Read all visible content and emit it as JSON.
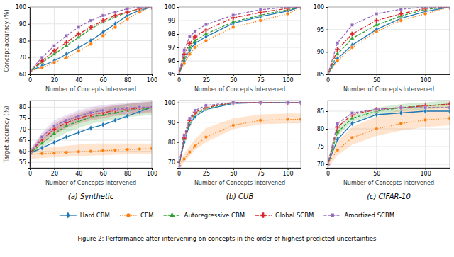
{
  "caption": "Figure 2: Performance after intervening on concepts in the order of highest predicted uncertainties",
  "chart_data": [
    {
      "type": "line",
      "ylabel": "Concept accuracy (%)",
      "xlabel": "Number of Concepts Intervened",
      "x": [
        0,
        10,
        20,
        30,
        40,
        50,
        60,
        70,
        80,
        90,
        100
      ],
      "series": [
        {
          "name": "Hard CBM",
          "marker": "diamond",
          "line_style": "solid",
          "values": [
            62,
            65,
            68,
            72,
            76,
            80,
            85,
            90,
            95,
            98,
            100
          ]
        },
        {
          "name": "CEM",
          "marker": "circle",
          "line_style": "dotted",
          "values": [
            62,
            64,
            67,
            70,
            74,
            78,
            83,
            88,
            93,
            97,
            100
          ]
        },
        {
          "name": "Autoregressive CBM",
          "marker": "triangle",
          "line_style": "dashed",
          "values": [
            62,
            67,
            72,
            77,
            82,
            87,
            91,
            94,
            97,
            99,
            100
          ]
        },
        {
          "name": "Global SCBM",
          "marker": "plus",
          "line_style": "dashdot",
          "values": [
            62,
            68,
            74,
            79,
            84,
            88,
            92,
            95,
            97,
            99,
            100
          ]
        },
        {
          "name": "Amortized SCBM",
          "marker": "square",
          "line_style": "dashed",
          "values": [
            62,
            70,
            77,
            83,
            88,
            92,
            95,
            97,
            99,
            100,
            100
          ]
        }
      ],
      "xlim": [
        0,
        100
      ],
      "ylim": [
        60,
        100
      ],
      "xticks": [
        0,
        20,
        40,
        60,
        80,
        100
      ],
      "yticks": [
        60,
        70,
        80,
        90,
        100
      ],
      "grid": true
    },
    {
      "type": "line",
      "xlabel": "Number of Concepts Intervened",
      "x": [
        0,
        5,
        10,
        15,
        25,
        50,
        75,
        100,
        112
      ],
      "series": [
        {
          "name": "Hard CBM",
          "marker": "diamond",
          "line_style": "solid",
          "values": [
            95.0,
            96.0,
            96.8,
            97.3,
            97.8,
            98.8,
            99.3,
            99.7,
            100.0
          ]
        },
        {
          "name": "CEM",
          "marker": "circle",
          "line_style": "dotted",
          "values": [
            95.0,
            95.8,
            96.5,
            97.0,
            97.5,
            98.5,
            99.0,
            99.5,
            100.0
          ]
        },
        {
          "name": "Autoregressive CBM",
          "marker": "triangle",
          "line_style": "dashed",
          "values": [
            95.0,
            96.2,
            97.0,
            97.5,
            98.0,
            98.9,
            99.4,
            99.8,
            100.0
          ]
        },
        {
          "name": "Global SCBM",
          "marker": "plus",
          "line_style": "dashdot",
          "values": [
            95.0,
            96.5,
            97.3,
            97.8,
            98.3,
            99.2,
            99.6,
            99.9,
            100.0
          ]
        },
        {
          "name": "Amortized SCBM",
          "marker": "square",
          "line_style": "dashed",
          "values": [
            95.0,
            96.8,
            97.8,
            98.2,
            98.7,
            99.4,
            99.8,
            100.0,
            100.0
          ]
        }
      ],
      "xlim": [
        0,
        112
      ],
      "ylim": [
        95,
        100
      ],
      "xticks": [
        0,
        25,
        50,
        75,
        100
      ],
      "yticks": [
        95,
        96,
        97,
        98,
        99,
        100
      ],
      "grid": true
    },
    {
      "type": "line",
      "xlabel": "Number of Concepts Intervened",
      "x": [
        0,
        10,
        25,
        50,
        75,
        100,
        125
      ],
      "series": [
        {
          "name": "Hard CBM",
          "marker": "diamond",
          "line_style": "solid",
          "values": [
            85.0,
            88.5,
            91.5,
            95.0,
            97.5,
            99.0,
            100.0
          ]
        },
        {
          "name": "CEM",
          "marker": "circle",
          "line_style": "dotted",
          "values": [
            85.0,
            88.0,
            91.0,
            94.5,
            97.0,
            98.5,
            100.0
          ]
        },
        {
          "name": "Autoregressive CBM",
          "marker": "triangle",
          "line_style": "dashed",
          "values": [
            85.0,
            89.5,
            93.0,
            96.0,
            98.0,
            99.5,
            100.0
          ]
        },
        {
          "name": "Global SCBM",
          "marker": "plus",
          "line_style": "dashdot",
          "values": [
            85.0,
            90.5,
            94.0,
            97.0,
            98.5,
            99.7,
            100.0
          ]
        },
        {
          "name": "Amortized SCBM",
          "marker": "square",
          "line_style": "dashed",
          "values": [
            85.0,
            92.0,
            96.0,
            98.5,
            99.5,
            100.0,
            100.0
          ]
        }
      ],
      "xlim": [
        0,
        125
      ],
      "ylim": [
        85,
        100
      ],
      "xticks": [
        0,
        50,
        100
      ],
      "yticks": [
        85,
        90,
        95,
        100
      ],
      "grid": true
    },
    {
      "type": "line",
      "title": "(a) Synthetic",
      "ylabel": "Target accuracy (%)",
      "xlabel": "Number of Concepts Intervened",
      "x": [
        0,
        10,
        20,
        30,
        40,
        50,
        60,
        70,
        80,
        90,
        100
      ],
      "series": [
        {
          "name": "Hard CBM",
          "marker": "diamond",
          "line_style": "solid",
          "values": [
            59.0,
            61.5,
            64.0,
            66.5,
            68.5,
            70.5,
            72.0,
            74.0,
            76.0,
            78.0,
            80.0
          ]
        },
        {
          "name": "CEM",
          "marker": "circle",
          "line_style": "dotted",
          "values": [
            58.5,
            59.0,
            59.2,
            59.5,
            59.8,
            60.0,
            60.3,
            60.5,
            60.8,
            61.0,
            61.2
          ],
          "lo": [
            56.5,
            57.0,
            57.2,
            57.5,
            57.8,
            58.0,
            58.2,
            58.4,
            58.6,
            58.8,
            59.0
          ],
          "hi": [
            60.5,
            61.5,
            62.0,
            62.5,
            63.0,
            63.5,
            63.5,
            63.5,
            63.5,
            63.5,
            63.5
          ]
        },
        {
          "name": "Autoregressive CBM",
          "marker": "triangle",
          "line_style": "dashed",
          "values": [
            59.0,
            63.5,
            68.0,
            71.5,
            73.5,
            75.5,
            76.5,
            77.5,
            78.5,
            79.0,
            79.5
          ],
          "lo": [
            58.0,
            61.5,
            65.5,
            68.5,
            70.5,
            72.5,
            73.5,
            74.5,
            75.5,
            76.0,
            76.5
          ],
          "hi": [
            60.5,
            65.5,
            71.0,
            74.5,
            76.5,
            78.5,
            79.5,
            80.5,
            81.5,
            82.0,
            82.5
          ]
        },
        {
          "name": "Global SCBM",
          "marker": "plus",
          "line_style": "dashdot",
          "values": [
            59.0,
            65.5,
            70.0,
            73.0,
            75.0,
            76.5,
            77.5,
            78.5,
            79.0,
            79.5,
            80.0
          ],
          "lo": [
            58.0,
            63.5,
            67.5,
            70.5,
            72.5,
            74.0,
            75.0,
            76.0,
            76.5,
            77.0,
            77.5
          ],
          "hi": [
            60.5,
            67.5,
            72.5,
            75.5,
            77.5,
            79.0,
            80.0,
            81.0,
            81.5,
            82.0,
            82.5
          ]
        },
        {
          "name": "Amortized SCBM",
          "marker": "square",
          "line_style": "dashed",
          "values": [
            59.0,
            66.5,
            71.5,
            74.0,
            76.0,
            77.5,
            78.5,
            79.0,
            79.5,
            80.0,
            80.0
          ],
          "lo": [
            58.0,
            64.5,
            69.0,
            71.5,
            73.5,
            75.0,
            76.0,
            76.5,
            77.0,
            77.5,
            78.0
          ],
          "hi": [
            60.5,
            68.5,
            74.0,
            76.5,
            78.5,
            80.0,
            81.0,
            81.5,
            82.0,
            82.5,
            83.0
          ]
        }
      ],
      "xlim": [
        0,
        100
      ],
      "ylim": [
        52.5,
        83
      ],
      "xticks": [
        0,
        20,
        40,
        60,
        80,
        100
      ],
      "yticks": [
        55,
        60,
        65,
        70,
        75,
        80
      ],
      "grid": true
    },
    {
      "type": "line",
      "title": "(b) CUB",
      "xlabel": "Number of Concepts Intervened",
      "x": [
        0,
        5,
        10,
        15,
        25,
        50,
        75,
        100,
        112
      ],
      "series": [
        {
          "name": "Hard CBM",
          "marker": "diamond",
          "line_style": "solid",
          "values": [
            68.0,
            80.0,
            89.0,
            93.0,
            96.5,
            99.5,
            100.0,
            100.0,
            100.0
          ]
        },
        {
          "name": "CEM",
          "marker": "circle",
          "line_style": "dotted",
          "values": [
            68.0,
            71.5,
            75.0,
            78.0,
            82.5,
            88.5,
            91.0,
            91.5,
            91.5
          ],
          "lo": [
            67.0,
            70.0,
            73.0,
            76.0,
            80.0,
            86.5,
            89.0,
            89.5,
            89.5
          ],
          "hi": [
            70.0,
            74.0,
            78.0,
            81.5,
            87.0,
            92.0,
            94.0,
            94.5,
            94.5
          ]
        },
        {
          "name": "Autoregressive CBM",
          "marker": "triangle",
          "line_style": "dashed",
          "values": [
            68.0,
            81.5,
            90.0,
            94.0,
            97.0,
            100.0,
            100.0,
            100.0,
            100.0
          ]
        },
        {
          "name": "Global SCBM",
          "marker": "plus",
          "line_style": "dashdot",
          "values": [
            68.0,
            82.0,
            91.0,
            95.0,
            97.5,
            100.0,
            100.0,
            100.0,
            100.0
          ]
        },
        {
          "name": "Amortized SCBM",
          "marker": "square",
          "line_style": "dashed",
          "values": [
            68.0,
            83.5,
            92.0,
            96.0,
            98.5,
            100.0,
            100.0,
            100.0,
            100.0
          ]
        }
      ],
      "xlim": [
        0,
        112
      ],
      "ylim": [
        67,
        101
      ],
      "xticks": [
        0,
        25,
        50,
        75,
        100
      ],
      "yticks": [
        70,
        80,
        90,
        100
      ],
      "grid": true
    },
    {
      "type": "line",
      "title": "(c) CIFAR-10",
      "xlabel": "Number of Concepts Intervened",
      "x": [
        0,
        10,
        25,
        50,
        75,
        100,
        125
      ],
      "series": [
        {
          "name": "Hard CBM",
          "marker": "diamond",
          "line_style": "solid",
          "values": [
            70.0,
            77.0,
            81.5,
            84.0,
            84.5,
            85.0,
            85.0
          ]
        },
        {
          "name": "CEM",
          "marker": "circle",
          "line_style": "dotted",
          "values": [
            70.0,
            74.0,
            77.5,
            80.0,
            81.5,
            82.5,
            83.0
          ],
          "lo": [
            69.0,
            72.5,
            75.5,
            78.0,
            79.5,
            80.5,
            81.0
          ],
          "hi": [
            72.0,
            76.5,
            80.5,
            83.5,
            85.5,
            86.5,
            87.0
          ]
        },
        {
          "name": "Autoregressive CBM",
          "marker": "triangle",
          "line_style": "dashed",
          "values": [
            70.0,
            79.0,
            83.0,
            85.0,
            86.0,
            86.5,
            87.0
          ],
          "lo": [
            69.5,
            78.0,
            82.0,
            84.0,
            85.0,
            85.5,
            86.0
          ],
          "hi": [
            70.5,
            80.0,
            84.0,
            86.0,
            87.0,
            87.5,
            88.0
          ]
        },
        {
          "name": "Global SCBM",
          "marker": "plus",
          "line_style": "dashdot",
          "values": [
            70.0,
            80.5,
            84.0,
            85.5,
            86.0,
            86.5,
            87.0
          ]
        },
        {
          "name": "Amortized SCBM",
          "marker": "square",
          "line_style": "dashed",
          "values": [
            70.0,
            81.5,
            84.5,
            85.5,
            86.0,
            86.0,
            86.0
          ]
        }
      ],
      "xlim": [
        0,
        125
      ],
      "ylim": [
        69,
        88
      ],
      "xticks": [
        0,
        50,
        100
      ],
      "yticks": [
        70,
        75,
        80,
        85
      ],
      "grid": true
    }
  ]
}
